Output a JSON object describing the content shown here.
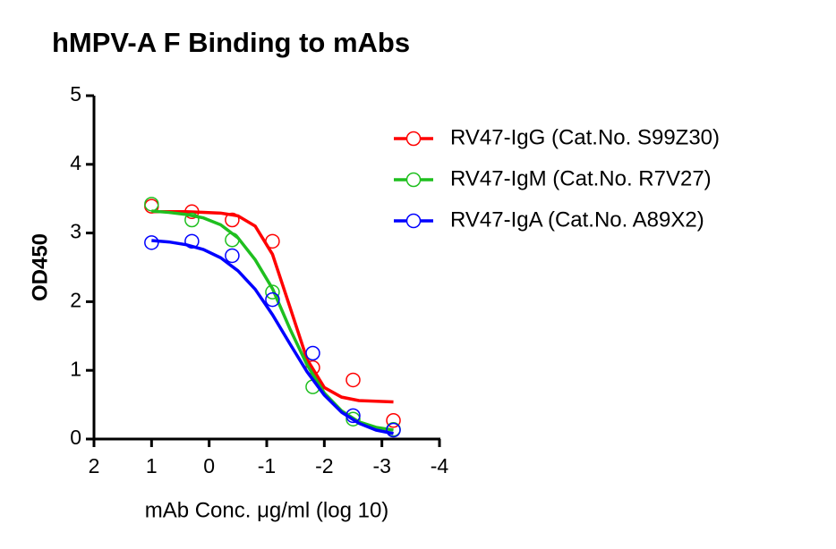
{
  "chart_data": {
    "type": "scatter",
    "title": "hMPV-A F Binding to mAbs",
    "x_label": "mAb Conc. μg/ml (log 10)",
    "y_label": "OD450",
    "xlim": [
      2,
      -4
    ],
    "xticks": [
      2,
      1,
      0,
      -1,
      -2,
      -3,
      -4
    ],
    "ylim": [
      0,
      5
    ],
    "yticks": [
      0,
      1,
      2,
      3,
      4,
      5
    ],
    "legend": "top-right",
    "fit_x": [
      1,
      0.7,
      0.4,
      0.1,
      -0.2,
      -0.5,
      -0.8,
      -1.1,
      -1.4,
      -1.7,
      -2.0,
      -2.3,
      -2.6,
      -2.9,
      -3.2
    ],
    "series": [
      {
        "name": "RV47-IgG (Cat.No. S99Z30)",
        "color": "#ff0000",
        "x": [
          1,
          0.3,
          -0.4,
          -1.1,
          -1.8,
          -2.5,
          -3.2
        ],
        "values": [
          3.39,
          3.31,
          3.19,
          2.88,
          1.04,
          0.86,
          0.27
        ],
        "fit_values": [
          3.31,
          3.31,
          3.31,
          3.3,
          3.29,
          3.25,
          3.1,
          2.69,
          1.93,
          1.16,
          0.75,
          0.61,
          0.56,
          0.55,
          0.54
        ]
      },
      {
        "name": "RV47-IgM (Cat.No. R7V27)",
        "color": "#1fbf1f",
        "x": [
          1,
          0.3,
          -0.4,
          -1.1,
          -1.8,
          -2.5,
          -3.2
        ],
        "values": [
          3.42,
          3.19,
          2.9,
          2.14,
          0.76,
          0.29,
          0.14
        ],
        "fit_values": [
          3.32,
          3.3,
          3.27,
          3.22,
          3.12,
          2.93,
          2.61,
          2.19,
          1.61,
          1.08,
          0.67,
          0.41,
          0.25,
          0.17,
          0.13
        ]
      },
      {
        "name": "RV47-IgA (Cat.No. A89X2)",
        "color": "#0000ff",
        "x": [
          1,
          0.3,
          -0.4,
          -1.1,
          -1.8,
          -2.5,
          -3.2
        ],
        "values": [
          2.86,
          2.88,
          2.67,
          2.03,
          1.25,
          0.34,
          0.13
        ],
        "fit_values": [
          2.89,
          2.87,
          2.83,
          2.76,
          2.64,
          2.45,
          2.18,
          1.81,
          1.39,
          0.98,
          0.64,
          0.39,
          0.23,
          0.13,
          0.08
        ]
      }
    ]
  }
}
